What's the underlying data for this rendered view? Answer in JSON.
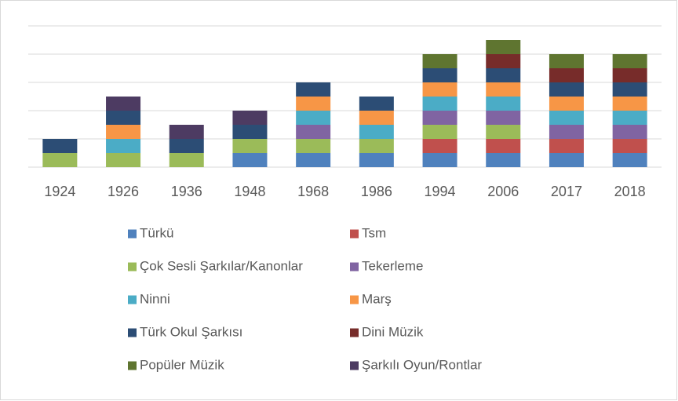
{
  "chart_data": {
    "type": "stacked_bar",
    "categories": [
      "1924",
      "1926",
      "1936",
      "1948",
      "1968",
      "1986",
      "1994",
      "2006",
      "2017",
      "2018"
    ],
    "series": [
      {
        "name": "Türkü",
        "color": "#4f81bd",
        "values": [
          0,
          0,
          0,
          1,
          1,
          1,
          1,
          1,
          1,
          1
        ]
      },
      {
        "name": "Tsm",
        "color": "#c0504d",
        "values": [
          0,
          0,
          0,
          0,
          0,
          0,
          1,
          1,
          1,
          1
        ]
      },
      {
        "name": "Çok Sesli Şarkılar/Kanonlar",
        "color": "#9bbb59",
        "values": [
          1,
          1,
          1,
          1,
          1,
          1,
          1,
          1,
          0,
          0
        ]
      },
      {
        "name": "Tekerleme",
        "color": "#8064a2",
        "values": [
          0,
          0,
          0,
          0,
          1,
          0,
          1,
          1,
          1,
          1
        ]
      },
      {
        "name": "Ninni",
        "color": "#4bacc6",
        "values": [
          0,
          1,
          0,
          0,
          1,
          1,
          1,
          1,
          1,
          1
        ]
      },
      {
        "name": "Marş",
        "color": "#f79646",
        "values": [
          0,
          1,
          0,
          0,
          1,
          1,
          1,
          1,
          1,
          1
        ]
      },
      {
        "name": "Türk Okul Şarkısı",
        "color": "#2c4d75",
        "values": [
          1,
          1,
          1,
          1,
          1,
          1,
          1,
          1,
          1,
          1
        ]
      },
      {
        "name": "Dini Müzik",
        "color": "#772c2a",
        "values": [
          0,
          0,
          0,
          0,
          0,
          0,
          0,
          1,
          1,
          1
        ]
      },
      {
        "name": "Popüler Müzik",
        "color": "#5f7530",
        "values": [
          0,
          0,
          0,
          0,
          0,
          0,
          1,
          1,
          1,
          1
        ]
      },
      {
        "name": "Şarkılı Oyun/Rontlar",
        "color": "#4d3b62",
        "values": [
          0,
          1,
          1,
          1,
          0,
          0,
          0,
          0,
          0,
          0
        ]
      }
    ],
    "ylim": [
      0,
      10
    ],
    "yticks": [
      0,
      2,
      4,
      6,
      8,
      10
    ],
    "grid": true,
    "legend": "bottom"
  }
}
